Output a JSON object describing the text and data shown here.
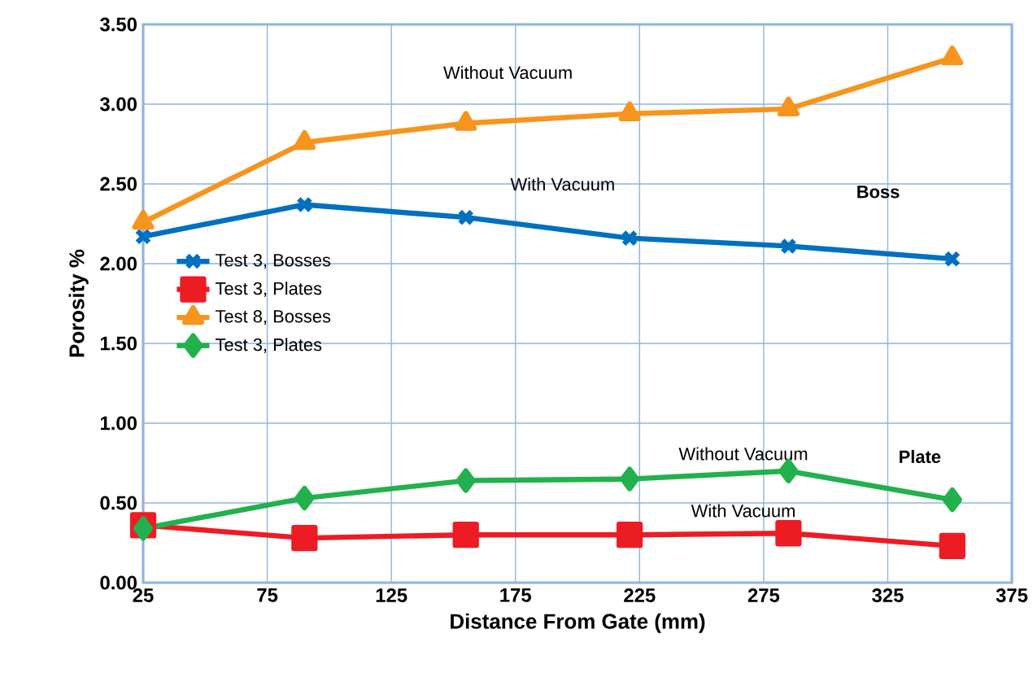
{
  "chart_data": {
    "type": "line",
    "xlabel": "Distance From Gate (mm)",
    "ylabel": "Porosity %",
    "x": [
      25,
      90,
      155,
      221,
      285,
      351
    ],
    "series": [
      {
        "name": "Test 3, Bosses",
        "color": "#0070c0",
        "marker": "cross",
        "values": [
          2.17,
          2.37,
          2.29,
          2.16,
          2.11,
          2.03
        ]
      },
      {
        "name": "Test 3, Plates",
        "color": "#ed1c24",
        "marker": "square",
        "values": [
          0.36,
          0.28,
          0.3,
          0.3,
          0.31,
          0.23
        ]
      },
      {
        "name": "Test 8, Bosses",
        "color": "#f7941d",
        "marker": "triangle",
        "values": [
          2.26,
          2.76,
          2.88,
          2.94,
          2.97,
          3.29
        ]
      },
      {
        "name": "Test 3, Plates",
        "color": "#22b14c",
        "marker": "diamond",
        "values": [
          0.34,
          0.53,
          0.64,
          0.65,
          0.7,
          0.52
        ]
      }
    ],
    "xlim": [
      25,
      375
    ],
    "xticks": [
      25,
      75,
      125,
      175,
      225,
      275,
      325,
      375
    ],
    "ylim": [
      0,
      3.5
    ],
    "yticks": [
      {
        "value": 0,
        "label": "0.00"
      },
      {
        "value": 0.5,
        "label": "0.50"
      },
      {
        "value": 1,
        "label": "1.00"
      },
      {
        "value": 1.5,
        "label": "1.50"
      },
      {
        "value": 2,
        "label": "2.00"
      },
      {
        "value": 2.5,
        "label": "2.50"
      },
      {
        "value": 3,
        "label": "3.00"
      },
      {
        "value": 3.5,
        "label": "3.50"
      }
    ],
    "grid": true,
    "legend": "left",
    "line_style": "solid",
    "annotations": [
      "Without Vacuum",
      "With Vacuum",
      "**Boss**",
      "Without Vacuum",
      "With Vacuum",
      "**Plate**"
    ]
  }
}
